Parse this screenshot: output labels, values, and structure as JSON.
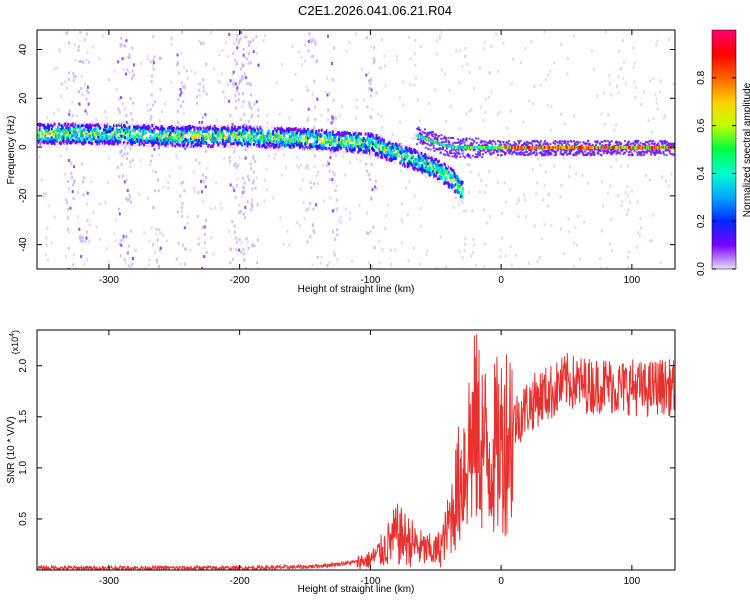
{
  "title": "C2E1.2026.041.06.21.R04",
  "chart_data": [
    {
      "type": "heatmap",
      "name": "spectrogram",
      "xlabel": "Height of straight line (km)",
      "ylabel": "Frequency (Hz)",
      "xlim": [
        -355,
        133
      ],
      "ylim": [
        -50,
        48
      ],
      "x_ticks": [
        -300,
        -200,
        -100,
        0,
        100
      ],
      "x_tick_labels": [
        "-300",
        "-200",
        "-100",
        "0",
        "100"
      ],
      "y_ticks": [
        -40,
        -20,
        0,
        20,
        40
      ],
      "y_tick_labels": [
        "-40",
        "-20",
        "0",
        "20",
        "40"
      ],
      "grid": false,
      "colorbar": {
        "label": "Normalized spectral amplitude",
        "range": [
          0,
          1
        ],
        "ticks": [
          0.0,
          0.2,
          0.4,
          0.6,
          0.8
        ],
        "tick_labels": [
          "0.0",
          "0.2",
          "0.4",
          "0.6",
          "0.8"
        ],
        "colors": [
          "#e8dcf6",
          "#7a00ff",
          "#0028ff",
          "#00a8ff",
          "#00ffd0",
          "#00ff40",
          "#c0ff00",
          "#ffd000",
          "#ff6000",
          "#ff0000",
          "#ff0070"
        ]
      },
      "signal": {
        "main_band": [
          [
            -355,
            6
          ],
          [
            -300,
            6
          ],
          [
            -250,
            5
          ],
          [
            -200,
            5
          ],
          [
            -150,
            4
          ],
          [
            -100,
            2
          ],
          [
            -90,
            0
          ],
          [
            -75,
            -3
          ],
          [
            -60,
            -6
          ],
          [
            -45,
            -10
          ],
          [
            -35,
            -14
          ],
          [
            -30,
            -18
          ]
        ],
        "upper_branch": [
          [
            -65,
            5
          ],
          [
            -55,
            3
          ],
          [
            -45,
            1
          ],
          [
            -35,
            0
          ],
          [
            -20,
            0
          ],
          [
            0,
            0
          ],
          [
            40,
            0
          ],
          [
            80,
            0
          ],
          [
            133,
            0
          ]
        ]
      },
      "vertical_streaks_x": [
        -330,
        -320,
        -290,
        -285,
        -265,
        -245,
        -230,
        -205,
        -200,
        -195,
        -190,
        -145,
        -130,
        -100
      ]
    },
    {
      "type": "line",
      "name": "snr",
      "xlabel": "Height of straight line (km)",
      "ylabel": "SNR (10 * V/V)",
      "y_multiplier": "(x10",
      "y_multiplier_exp": "4",
      "y_multiplier_close": ")",
      "xlim": [
        -355,
        133
      ],
      "ylim": [
        0,
        2.35
      ],
      "x_ticks": [
        -300,
        -200,
        -100,
        0,
        100
      ],
      "x_tick_labels": [
        "-300",
        "-200",
        "-100",
        "0",
        "100"
      ],
      "y_ticks": [
        0.5,
        1.0,
        1.5,
        2.0
      ],
      "y_tick_labels": [
        "0.5",
        "1.0",
        "1.5",
        "2.0"
      ],
      "grid": false,
      "color": "#e8302e",
      "series": [
        {
          "name": "SNR",
          "x": [
            -355,
            -300,
            -250,
            -200,
            -150,
            -130,
            -110,
            -100,
            -90,
            -80,
            -70,
            -60,
            -50,
            -45,
            -40,
            -35,
            -30,
            -25,
            -20,
            -15,
            -10,
            0,
            10,
            20,
            30,
            40,
            50,
            60,
            70,
            80,
            90,
            100,
            110,
            120,
            133
          ],
          "y": [
            0.02,
            0.02,
            0.02,
            0.02,
            0.03,
            0.05,
            0.08,
            0.1,
            0.2,
            0.35,
            0.28,
            0.2,
            0.18,
            0.25,
            0.45,
            0.7,
            0.95,
            1.2,
            1.35,
            1.3,
            1.1,
            1.25,
            1.45,
            1.6,
            1.7,
            1.75,
            1.85,
            1.82,
            1.8,
            1.82,
            1.78,
            1.8,
            1.76,
            1.8,
            1.78
          ]
        }
      ]
    }
  ]
}
